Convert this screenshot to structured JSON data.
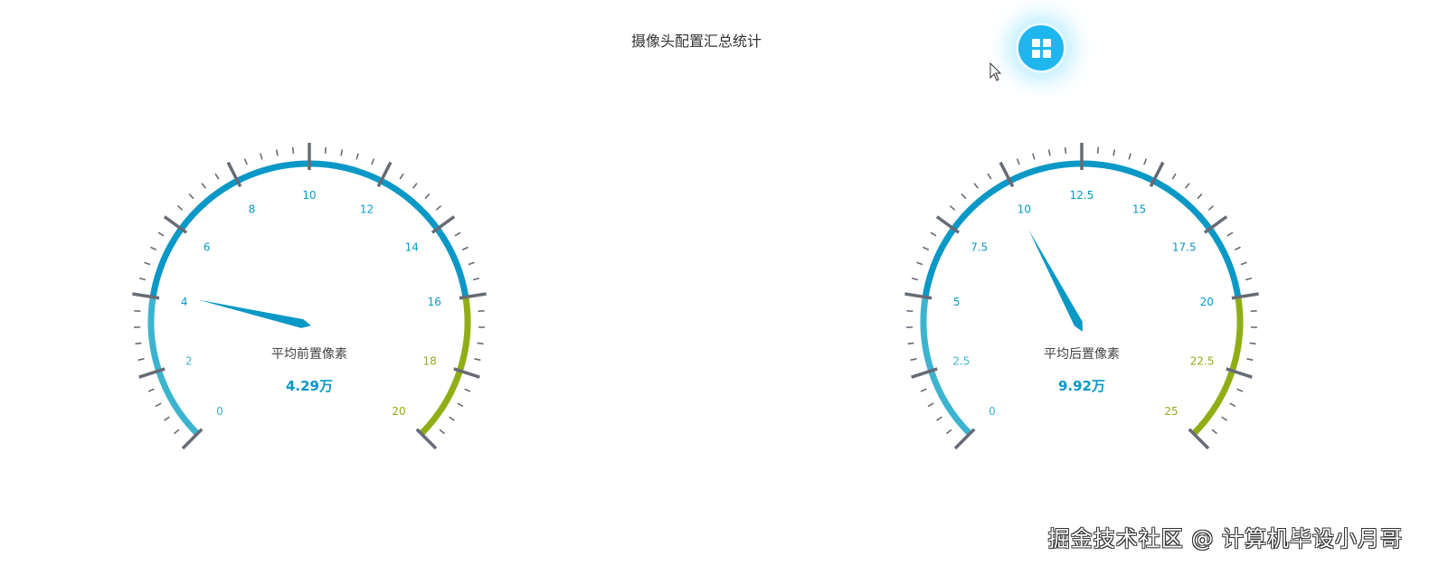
{
  "header": {
    "title": "摄像头配置汇总统计",
    "menu_icon": "grid-icon"
  },
  "colors": {
    "low": "#3db4cf",
    "mid": "#0a98c6",
    "high": "#8fae16",
    "tick": "#666b75",
    "label_mid": "#0a98c6",
    "label_high": "#8fae16",
    "value": "#0a98c6"
  },
  "gauges": [
    {
      "name": "平均前置像素",
      "value_label": "4.29万",
      "value": 4.29,
      "min": 0,
      "max": 20,
      "labels": [
        "0",
        "2",
        "4",
        "6",
        "8",
        "10",
        "12",
        "14",
        "16",
        "18",
        "20"
      ]
    },
    {
      "name": "平均后置像素",
      "value_label": "9.92万",
      "value": 9.92,
      "min": 0,
      "max": 25,
      "labels": [
        "0",
        "2.5",
        "5",
        "7.5",
        "10",
        "12.5",
        "15",
        "17.5",
        "20",
        "22.5",
        "25"
      ]
    }
  ],
  "watermark": "掘金技术社区 @ 计算机毕设小月哥"
}
